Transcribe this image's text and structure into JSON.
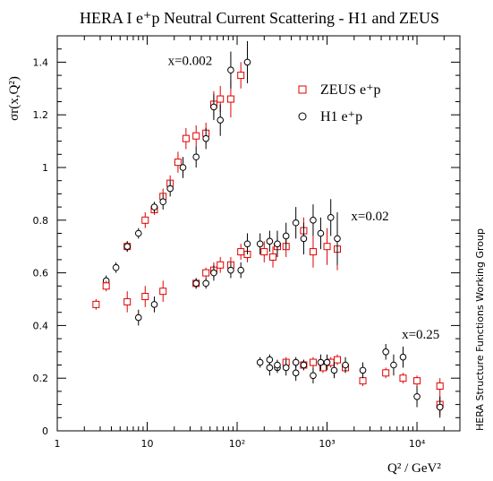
{
  "chart_data": {
    "type": "scatter",
    "title": "HERA I e⁺p Neutral Current Scattering - H1 and ZEUS",
    "xlabel": "Q² / GeV²",
    "ylabel": "σr(x,Q²)",
    "x_scale": "log",
    "xlim": [
      1,
      30000
    ],
    "ylim": [
      0,
      1.5
    ],
    "x_ticks": [
      {
        "value": 1,
        "label": "1"
      },
      {
        "value": 10,
        "label": "10"
      },
      {
        "value": 100,
        "label": "10²"
      },
      {
        "value": 1000,
        "label": "10³"
      },
      {
        "value": 10000,
        "label": "10⁴"
      }
    ],
    "y_ticks": [
      {
        "value": 0,
        "label": "0"
      },
      {
        "value": 0.2,
        "label": "0.2"
      },
      {
        "value": 0.4,
        "label": "0.4"
      },
      {
        "value": 0.6,
        "label": "0.6"
      },
      {
        "value": 0.8,
        "label": "0.8"
      },
      {
        "value": 1.0,
        "label": "1"
      },
      {
        "value": 1.2,
        "label": "1.2"
      },
      {
        "value": 1.4,
        "label": "1.4"
      }
    ],
    "legend": {
      "placement": "top-right",
      "entries": [
        {
          "label": "ZEUS e⁺p",
          "marker": "square",
          "color": "#e00000"
        },
        {
          "label": "H1 e⁺p",
          "marker": "circle",
          "color": "#000000"
        }
      ]
    },
    "annotations": [
      {
        "text": "x=0.002",
        "q2": 30,
        "y": 1.39
      },
      {
        "text": "x=0.02",
        "q2": 3000,
        "y": 0.8
      },
      {
        "text": "x=0.25",
        "q2": 11000,
        "y": 0.35
      }
    ],
    "credit": "HERA Structure Functions Working Group",
    "series": [
      {
        "name": "ZEUS e⁺p",
        "marker": "square",
        "color": "#e00000",
        "group": "x=0.002",
        "points": [
          [
            2.7,
            0.48,
            0.02
          ],
          [
            6.0,
            0.7,
            0.02
          ],
          [
            9.5,
            0.8,
            0.03
          ],
          [
            12,
            0.84,
            0.02
          ],
          [
            15,
            0.89,
            0.03
          ],
          [
            18,
            0.94,
            0.03
          ],
          [
            22,
            1.02,
            0.04
          ],
          [
            27,
            1.11,
            0.04
          ],
          [
            35,
            1.12,
            0.04
          ],
          [
            45,
            1.13,
            0.04
          ],
          [
            55,
            1.24,
            0.05
          ],
          [
            65,
            1.26,
            0.05
          ],
          [
            85,
            1.26,
            0.07
          ],
          [
            110,
            1.35,
            0.05
          ]
        ]
      },
      {
        "name": "H1 e⁺p",
        "marker": "circle",
        "color": "#000000",
        "group": "x=0.002",
        "points": [
          [
            3.5,
            0.57,
            0.02
          ],
          [
            4.5,
            0.62,
            0.02
          ],
          [
            6.0,
            0.7,
            0.02
          ],
          [
            8.0,
            0.75,
            0.02
          ],
          [
            12,
            0.85,
            0.02
          ],
          [
            15,
            0.87,
            0.03
          ],
          [
            18,
            0.92,
            0.03
          ],
          [
            25,
            1.0,
            0.04
          ],
          [
            35,
            1.04,
            0.04
          ],
          [
            45,
            1.11,
            0.04
          ],
          [
            55,
            1.23,
            0.05
          ],
          [
            65,
            1.18,
            0.06
          ],
          [
            85,
            1.37,
            0.07
          ],
          [
            130,
            1.4,
            0.08
          ]
        ]
      },
      {
        "name": "ZEUS e⁺p",
        "marker": "square",
        "color": "#e00000",
        "group": "x=0.02",
        "points": [
          [
            3.5,
            0.55,
            0.02
          ],
          [
            6.0,
            0.49,
            0.04
          ],
          [
            9.5,
            0.51,
            0.04
          ],
          [
            15,
            0.53,
            0.04
          ],
          [
            35,
            0.56,
            0.02
          ],
          [
            45,
            0.6,
            0.02
          ],
          [
            55,
            0.61,
            0.03
          ],
          [
            65,
            0.63,
            0.03
          ],
          [
            85,
            0.63,
            0.03
          ],
          [
            110,
            0.68,
            0.03
          ],
          [
            130,
            0.67,
            0.03
          ],
          [
            200,
            0.68,
            0.04
          ],
          [
            250,
            0.66,
            0.04
          ],
          [
            280,
            0.7,
            0.04
          ],
          [
            350,
            0.7,
            0.04
          ],
          [
            550,
            0.76,
            0.05
          ],
          [
            700,
            0.68,
            0.06
          ],
          [
            1000,
            0.7,
            0.07
          ],
          [
            1300,
            0.69,
            0.08
          ]
        ]
      },
      {
        "name": "H1 e⁺p",
        "marker": "circle",
        "color": "#000000",
        "group": "x=0.02",
        "points": [
          [
            8.0,
            0.43,
            0.03
          ],
          [
            12,
            0.48,
            0.03
          ],
          [
            35,
            0.56,
            0.02
          ],
          [
            45,
            0.56,
            0.02
          ],
          [
            55,
            0.6,
            0.03
          ],
          [
            85,
            0.61,
            0.03
          ],
          [
            110,
            0.61,
            0.03
          ],
          [
            130,
            0.71,
            0.04
          ],
          [
            180,
            0.71,
            0.04
          ],
          [
            230,
            0.72,
            0.04
          ],
          [
            280,
            0.71,
            0.05
          ],
          [
            350,
            0.74,
            0.05
          ],
          [
            450,
            0.79,
            0.06
          ],
          [
            550,
            0.73,
            0.06
          ],
          [
            700,
            0.8,
            0.06
          ],
          [
            850,
            0.75,
            0.06
          ],
          [
            1100,
            0.81,
            0.07
          ],
          [
            1300,
            0.73,
            0.1
          ]
        ]
      },
      {
        "name": "ZEUS e⁺p",
        "marker": "square",
        "color": "#e00000",
        "group": "x=0.25",
        "points": [
          [
            350,
            0.26,
            0.02
          ],
          [
            550,
            0.25,
            0.02
          ],
          [
            700,
            0.26,
            0.02
          ],
          [
            900,
            0.24,
            0.02
          ],
          [
            1100,
            0.26,
            0.02
          ],
          [
            1300,
            0.27,
            0.02
          ],
          [
            1600,
            0.24,
            0.02
          ],
          [
            2500,
            0.19,
            0.02
          ],
          [
            4500,
            0.22,
            0.02
          ],
          [
            7000,
            0.2,
            0.02
          ],
          [
            10000,
            0.19,
            0.02
          ],
          [
            18000,
            0.17,
            0.03
          ],
          [
            18000,
            0.1,
            0.04
          ]
        ]
      },
      {
        "name": "H1 e⁺p",
        "marker": "circle",
        "color": "#000000",
        "group": "x=0.25",
        "points": [
          [
            180,
            0.26,
            0.02
          ],
          [
            230,
            0.24,
            0.03
          ],
          [
            230,
            0.27,
            0.02
          ],
          [
            280,
            0.24,
            0.02
          ],
          [
            280,
            0.25,
            0.02
          ],
          [
            350,
            0.24,
            0.03
          ],
          [
            450,
            0.22,
            0.03
          ],
          [
            450,
            0.26,
            0.02
          ],
          [
            550,
            0.25,
            0.02
          ],
          [
            700,
            0.21,
            0.03
          ],
          [
            850,
            0.26,
            0.03
          ],
          [
            1000,
            0.26,
            0.03
          ],
          [
            1200,
            0.23,
            0.03
          ],
          [
            1600,
            0.25,
            0.03
          ],
          [
            2500,
            0.23,
            0.03
          ],
          [
            4500,
            0.3,
            0.03
          ],
          [
            5500,
            0.25,
            0.04
          ],
          [
            7000,
            0.28,
            0.04
          ],
          [
            10000,
            0.13,
            0.04
          ],
          [
            18000,
            0.09,
            0.04
          ]
        ]
      }
    ]
  }
}
